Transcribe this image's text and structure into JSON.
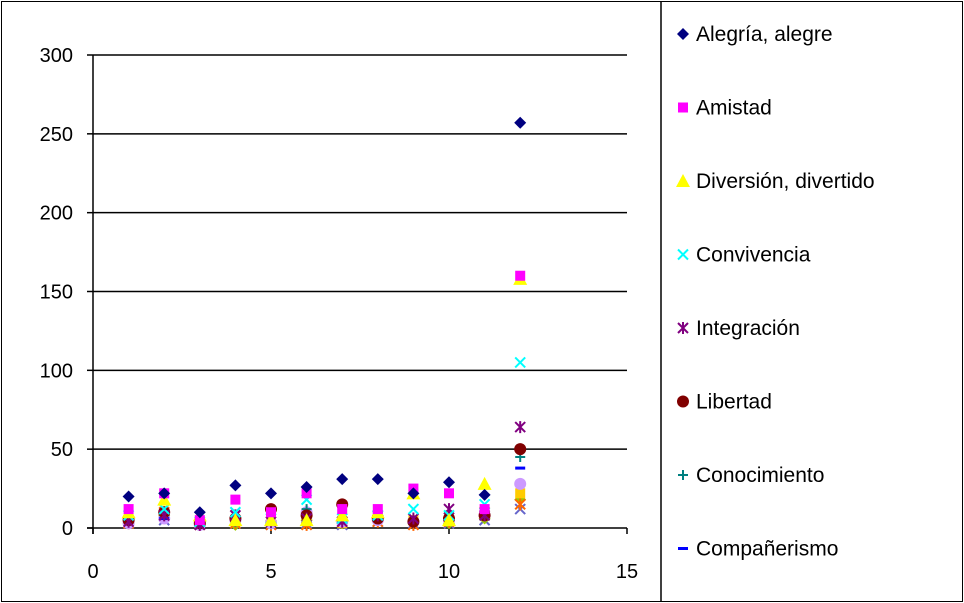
{
  "chart_data": {
    "type": "scatter",
    "title": "",
    "xlabel": "",
    "ylabel": "",
    "xlim": [
      0,
      15
    ],
    "ylim": [
      0,
      300
    ],
    "x_ticks": [
      "0",
      "5",
      "10",
      "15"
    ],
    "y_ticks": [
      "0",
      "50",
      "100",
      "150",
      "200",
      "250",
      "300"
    ],
    "grid": "horizontal",
    "legend_position": "right",
    "series": [
      {
        "name": "Alegría, alegre",
        "marker": "diamond",
        "color": "#000080",
        "points": [
          [
            1,
            20
          ],
          [
            2,
            22
          ],
          [
            3,
            10
          ],
          [
            4,
            27
          ],
          [
            5,
            22
          ],
          [
            6,
            26
          ],
          [
            7,
            31
          ],
          [
            8,
            31
          ],
          [
            9,
            22
          ],
          [
            10,
            29
          ],
          [
            11,
            21
          ],
          [
            12,
            257
          ]
        ]
      },
      {
        "name": "Amistad",
        "marker": "square",
        "color": "#FF00FF",
        "points": [
          [
            1,
            12
          ],
          [
            2,
            22
          ],
          [
            3,
            5
          ],
          [
            4,
            18
          ],
          [
            5,
            10
          ],
          [
            6,
            22
          ],
          [
            7,
            12
          ],
          [
            8,
            12
          ],
          [
            9,
            25
          ],
          [
            10,
            22
          ],
          [
            11,
            12
          ],
          [
            12,
            160
          ]
        ]
      },
      {
        "name": "Diversión, divertido",
        "marker": "triangle",
        "color": "#FFFF00",
        "points": [
          [
            1,
            10
          ],
          [
            2,
            18
          ],
          [
            3,
            8
          ],
          [
            4,
            5
          ],
          [
            5,
            5
          ],
          [
            6,
            5
          ],
          [
            7,
            8
          ],
          [
            8,
            10
          ],
          [
            9,
            22
          ],
          [
            10,
            5
          ],
          [
            11,
            28
          ],
          [
            12,
            158
          ]
        ]
      },
      {
        "name": "Convivencia",
        "marker": "x",
        "color": "#00FFFF",
        "points": [
          [
            1,
            8
          ],
          [
            2,
            12
          ],
          [
            3,
            4
          ],
          [
            4,
            10
          ],
          [
            5,
            6
          ],
          [
            6,
            18
          ],
          [
            7,
            6
          ],
          [
            8,
            8
          ],
          [
            9,
            12
          ],
          [
            10,
            8
          ],
          [
            11,
            15
          ],
          [
            12,
            105
          ]
        ]
      },
      {
        "name": "Integración",
        "marker": "star",
        "color": "#800080",
        "points": [
          [
            1,
            4
          ],
          [
            2,
            8
          ],
          [
            3,
            2
          ],
          [
            4,
            8
          ],
          [
            5,
            4
          ],
          [
            6,
            6
          ],
          [
            7,
            4
          ],
          [
            8,
            8
          ],
          [
            9,
            6
          ],
          [
            10,
            12
          ],
          [
            11,
            8
          ],
          [
            12,
            64
          ]
        ]
      },
      {
        "name": "Libertad",
        "marker": "circle",
        "color": "#800000",
        "points": [
          [
            1,
            5
          ],
          [
            2,
            10
          ],
          [
            3,
            3
          ],
          [
            4,
            6
          ],
          [
            5,
            12
          ],
          [
            6,
            8
          ],
          [
            7,
            15
          ],
          [
            8,
            6
          ],
          [
            9,
            4
          ],
          [
            10,
            6
          ],
          [
            11,
            8
          ],
          [
            12,
            50
          ]
        ]
      },
      {
        "name": "Conocimiento",
        "marker": "plus",
        "color": "#008080",
        "points": [
          [
            1,
            6
          ],
          [
            2,
            8
          ],
          [
            3,
            3
          ],
          [
            4,
            4
          ],
          [
            5,
            3
          ],
          [
            6,
            12
          ],
          [
            7,
            5
          ],
          [
            8,
            10
          ],
          [
            9,
            5
          ],
          [
            10,
            5
          ],
          [
            11,
            10
          ],
          [
            12,
            45
          ]
        ]
      },
      {
        "name": "Compañerismo",
        "marker": "dash",
        "color": "#0000FF",
        "points": [
          [
            1,
            4
          ],
          [
            2,
            6
          ],
          [
            3,
            2
          ],
          [
            4,
            4
          ],
          [
            5,
            3
          ],
          [
            6,
            4
          ],
          [
            7,
            4
          ],
          [
            8,
            6
          ],
          [
            9,
            4
          ],
          [
            10,
            4
          ],
          [
            11,
            8
          ],
          [
            12,
            38
          ]
        ]
      },
      {
        "marker": "circle",
        "color": "#CC99FF",
        "points": [
          [
            1,
            3
          ],
          [
            2,
            6
          ],
          [
            3,
            2
          ],
          [
            4,
            5
          ],
          [
            5,
            3
          ],
          [
            6,
            10
          ],
          [
            7,
            4
          ],
          [
            8,
            5
          ],
          [
            9,
            4
          ],
          [
            10,
            5
          ],
          [
            11,
            8
          ],
          [
            12,
            28
          ]
        ]
      },
      {
        "marker": "square",
        "color": "#FFCC00",
        "points": [
          [
            1,
            5
          ],
          [
            2,
            8
          ],
          [
            3,
            3
          ],
          [
            4,
            5
          ],
          [
            5,
            4
          ],
          [
            6,
            5
          ],
          [
            7,
            3
          ],
          [
            8,
            6
          ],
          [
            9,
            5
          ],
          [
            10,
            8
          ],
          [
            11,
            8
          ],
          [
            12,
            22
          ]
        ]
      },
      {
        "marker": "star",
        "color": "#FF6600",
        "points": [
          [
            1,
            3
          ],
          [
            2,
            10
          ],
          [
            3,
            2
          ],
          [
            4,
            3
          ],
          [
            5,
            2
          ],
          [
            6,
            2
          ],
          [
            7,
            4
          ],
          [
            8,
            4
          ],
          [
            9,
            2
          ],
          [
            10,
            4
          ],
          [
            11,
            10
          ],
          [
            12,
            15
          ]
        ]
      },
      {
        "marker": "diamond",
        "color": "#99CC00",
        "points": [
          [
            1,
            7
          ],
          [
            2,
            8
          ],
          [
            3,
            3
          ],
          [
            4,
            2
          ],
          [
            5,
            4
          ],
          [
            6,
            5
          ],
          [
            7,
            3
          ],
          [
            8,
            8
          ],
          [
            9,
            5
          ],
          [
            10,
            3
          ],
          [
            11,
            6
          ],
          [
            12,
            18
          ]
        ]
      },
      {
        "marker": "x",
        "color": "#6666CC",
        "points": [
          [
            1,
            3
          ],
          [
            2,
            5
          ],
          [
            3,
            2
          ],
          [
            4,
            3
          ],
          [
            5,
            2
          ],
          [
            6,
            3
          ],
          [
            7,
            2
          ],
          [
            8,
            4
          ],
          [
            9,
            3
          ],
          [
            10,
            3
          ],
          [
            11,
            5
          ],
          [
            12,
            12
          ]
        ]
      }
    ]
  }
}
